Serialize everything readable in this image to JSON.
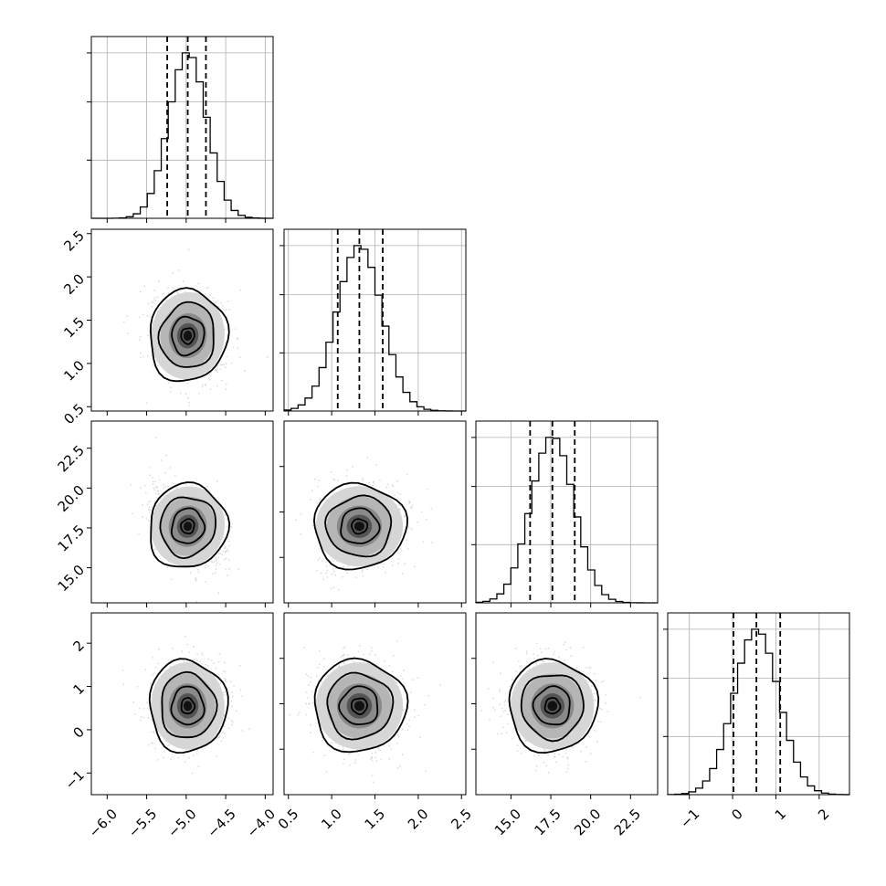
{
  "figure": {
    "type": "corner_plot"
  },
  "chart_data": [
    {
      "type": "histogram",
      "panel": "1-1",
      "parameter_index": 0,
      "xlim": [
        -6.2,
        -3.9
      ],
      "bins": 26,
      "center": -4.98,
      "sigma": 0.24,
      "quantiles": [
        -5.24,
        -4.98,
        -4.75
      ],
      "grid": true,
      "x_tick_values": [
        -6.0,
        -5.5,
        -5.0,
        -4.5,
        -4.0
      ],
      "x_tick_labels": [
        "−6.0",
        "−5.5",
        "−5.0",
        "−4.5",
        "−4.0"
      ]
    },
    {
      "type": "scatter",
      "panel": "2-1",
      "x_param": 0,
      "y_param": 1,
      "xlim": [
        -6.2,
        -3.9
      ],
      "ylim": [
        0.45,
        2.55
      ],
      "center": [
        -4.98,
        1.32
      ],
      "sigma": [
        0.24,
        0.26
      ],
      "rho": -0.15,
      "y_tick_values": [
        0.5,
        1.0,
        1.5,
        2.0,
        2.5
      ],
      "y_tick_labels": [
        "0.5",
        "1.0",
        "1.5",
        "2.0",
        "2.5"
      ]
    },
    {
      "type": "histogram",
      "panel": "2-2",
      "parameter_index": 1,
      "xlim": [
        0.45,
        2.55
      ],
      "bins": 26,
      "center": 1.32,
      "sigma": 0.26,
      "quantiles": [
        1.07,
        1.32,
        1.59
      ],
      "grid": true,
      "x_tick_values": [
        0.5,
        1.0,
        1.5,
        2.0,
        2.5
      ],
      "x_tick_labels": [
        "0.5",
        "1.0",
        "1.5",
        "2.0",
        "2.5"
      ]
    },
    {
      "type": "scatter",
      "panel": "3-1",
      "x_param": 0,
      "y_param": 2,
      "xlim": [
        -6.2,
        -3.9
      ],
      "ylim": [
        12.8,
        24.2
      ],
      "center": [
        -4.98,
        17.6
      ],
      "sigma": [
        0.24,
        1.3
      ],
      "rho": -0.45,
      "y_tick_values": [
        15.0,
        17.5,
        20.0,
        22.5
      ],
      "y_tick_labels": [
        "15.0",
        "17.5",
        "20.0",
        "22.5"
      ]
    },
    {
      "type": "scatter",
      "panel": "3-2",
      "x_param": 1,
      "y_param": 2,
      "xlim": [
        0.45,
        2.55
      ],
      "ylim": [
        12.8,
        24.2
      ],
      "center": [
        1.32,
        17.6
      ],
      "sigma": [
        0.26,
        1.3
      ],
      "rho": 0.05
    },
    {
      "type": "histogram",
      "panel": "3-3",
      "parameter_index": 2,
      "xlim": [
        12.8,
        24.2
      ],
      "bins": 26,
      "center": 17.6,
      "sigma": 1.35,
      "quantiles": [
        16.2,
        17.6,
        19.0
      ],
      "grid": true,
      "x_tick_values": [
        15.0,
        17.5,
        20.0,
        22.5
      ],
      "x_tick_labels": [
        "15.0",
        "17.5",
        "20.0",
        "22.5"
      ]
    },
    {
      "type": "scatter",
      "panel": "4-1",
      "x_param": 0,
      "y_param": 3,
      "xlim": [
        -6.2,
        -3.9
      ],
      "ylim": [
        -1.5,
        2.7
      ],
      "center": [
        -4.98,
        0.55
      ],
      "sigma": [
        0.24,
        0.52
      ],
      "rho": 0.05,
      "y_tick_values": [
        -1,
        0,
        1,
        2
      ],
      "y_tick_labels": [
        "−1",
        "0",
        "1",
        "2"
      ]
    },
    {
      "type": "scatter",
      "panel": "4-2",
      "x_param": 1,
      "y_param": 3,
      "xlim": [
        0.45,
        2.55
      ],
      "ylim": [
        -1.5,
        2.7
      ],
      "center": [
        1.32,
        0.55
      ],
      "sigma": [
        0.26,
        0.52
      ],
      "rho": -0.1
    },
    {
      "type": "scatter",
      "panel": "4-3",
      "x_param": 2,
      "y_param": 3,
      "xlim": [
        12.8,
        24.2
      ],
      "ylim": [
        -1.5,
        2.7
      ],
      "center": [
        17.6,
        0.55
      ],
      "sigma": [
        1.35,
        0.52
      ],
      "rho": 0.0
    },
    {
      "type": "histogram",
      "panel": "4-4",
      "parameter_index": 3,
      "xlim": [
        -1.5,
        2.7
      ],
      "bins": 26,
      "center": 0.55,
      "sigma": 0.52,
      "quantiles": [
        0.02,
        0.55,
        1.1
      ],
      "grid": true,
      "x_tick_values": [
        -1,
        0,
        1,
        2
      ],
      "x_tick_labels": [
        "−1",
        "0",
        "1",
        "2"
      ]
    }
  ]
}
